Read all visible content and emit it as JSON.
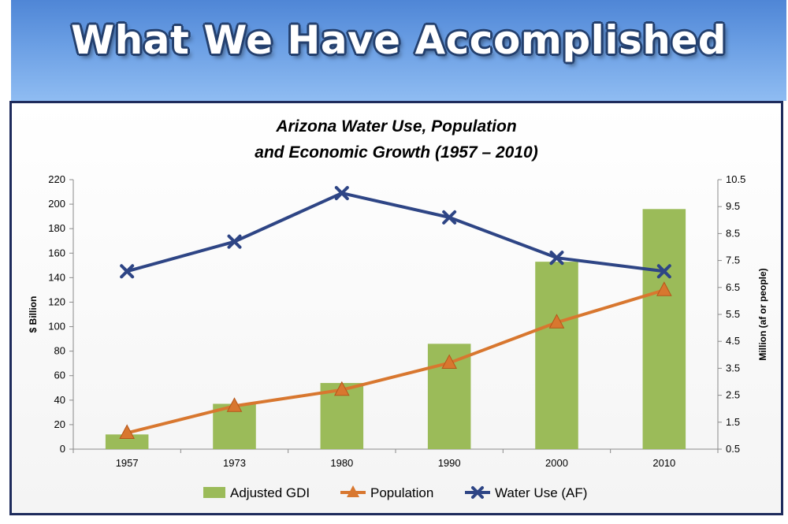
{
  "slide": {
    "title": "What We Have Accomplished"
  },
  "chart_data": {
    "type": "bar",
    "title": "Arizona Water Use, Population and Economic Growth (1957 – 2010)",
    "title_lines": [
      "Arizona Water Use, Population",
      "and Economic Growth (1957 – 2010)"
    ],
    "categories": [
      "1957",
      "1973",
      "1980",
      "1990",
      "2000",
      "2010"
    ],
    "ylabel": "$ Billion",
    "y2label": "Million (af or people)",
    "ylim": [
      0,
      220
    ],
    "y2lim": [
      0.5,
      10.5
    ],
    "yticks": [
      "0",
      "20",
      "40",
      "60",
      "80",
      "100",
      "120",
      "140",
      "160",
      "180",
      "200",
      "220"
    ],
    "y2ticks": [
      "0.5",
      "1.5",
      "2.5",
      "3.5",
      "4.5",
      "5.5",
      "6.5",
      "7.5",
      "8.5",
      "9.5",
      "10.5"
    ],
    "series": [
      {
        "name": "Adjusted GDI",
        "kind": "bar",
        "axis": "left",
        "color": "#9bbb59",
        "values": [
          12,
          37,
          54,
          86,
          153,
          196
        ]
      },
      {
        "name": "Population",
        "kind": "line",
        "axis": "right",
        "marker": "triangle",
        "color": "#d8772f",
        "values": [
          1.1,
          2.1,
          2.7,
          3.7,
          5.2,
          6.4
        ]
      },
      {
        "name": "Water Use (AF)",
        "kind": "line",
        "axis": "right",
        "marker": "x",
        "color": "#2e4585",
        "values": [
          7.1,
          8.2,
          10.0,
          9.1,
          7.6,
          7.1
        ]
      }
    ],
    "legend_position": "bottom"
  }
}
